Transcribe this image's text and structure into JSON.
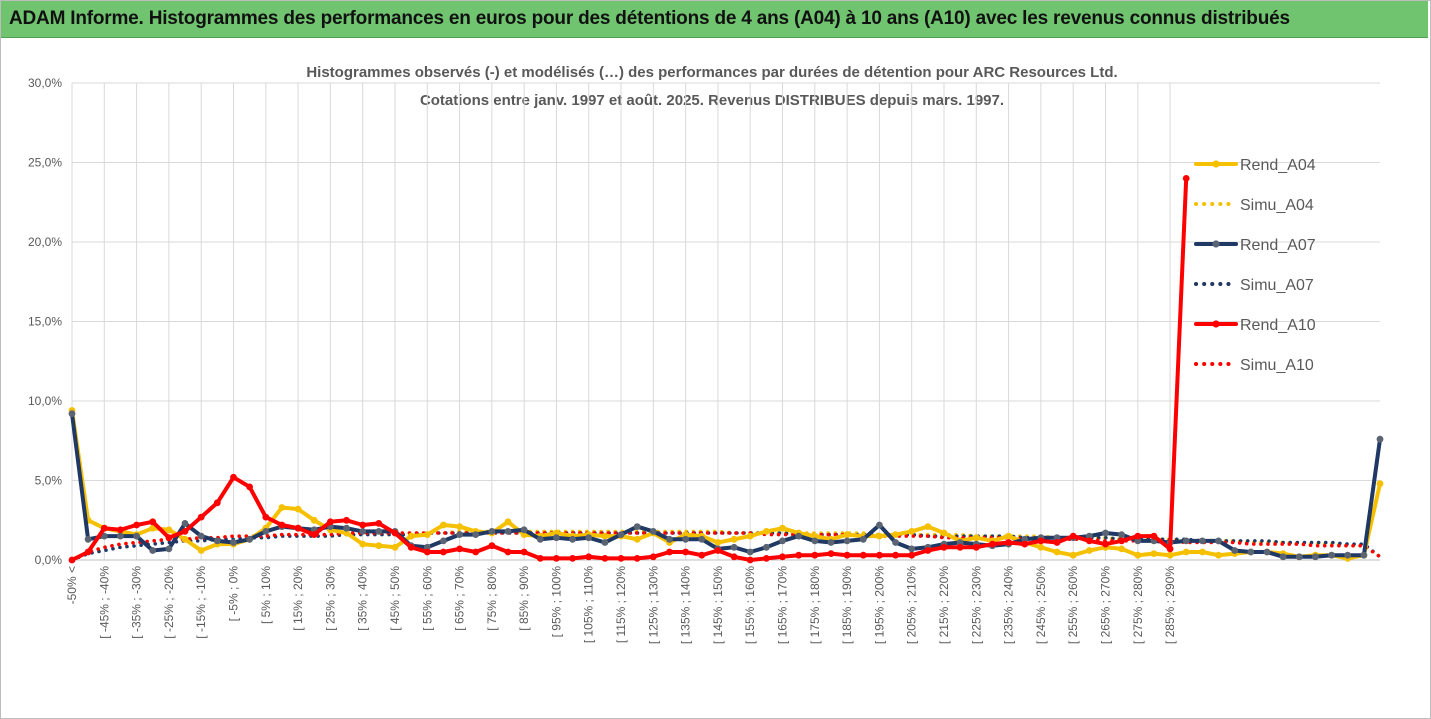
{
  "header": {
    "title": "ADAM Informe. Histogrammes des performances en euros pour des détentions de 4 ans (A04) à 10 ans (A10) avec les revenus connus distribués"
  },
  "chart_data": {
    "type": "line",
    "subtitle_line1": "Histogrammes observés (-) et modélisés (…) des performances par durées de détention pour ARC Resources Ltd.",
    "subtitle_line2": "Cotations entre janv. 1997 et août. 2025. Revenus DISTRIBUES depuis mars. 1997.",
    "ylim": [
      0,
      30
    ],
    "ytick_labels": [
      "0,0%",
      "5,0%",
      "10,0%",
      "15,0%",
      "20,0%",
      "25,0%",
      "30,0%"
    ],
    "x_labels": [
      "-50% <",
      "[ -45% ; -40%",
      "[ -35% ; -30%",
      "[ -25% ; -20%",
      "[ -15% ; -10%",
      "[ -5% ; 0%",
      "[ 5% ; 10%",
      "[ 15% ; 20%",
      "[ 25% ; 30%",
      "[ 35% ; 40%",
      "[ 45% ; 50%",
      "[ 55% ; 60%",
      "[ 65% ; 70%",
      "[ 75% ; 80%",
      "[ 85% ; 90%",
      "[ 95% ; 100%",
      "[ 105% ; 110%",
      "[ 115% ; 120%",
      "[ 125% ; 130%",
      "[ 135% ; 140%",
      "[ 145% ; 150%",
      "[ 155% ; 160%",
      "[ 165% ; 170%",
      "[ 175% ; 180%",
      "[ 185% ; 190%",
      "[ 195% ; 200%",
      "[ 205% ; 210%",
      "[ 215% ; 220%",
      "[ 225% ; 230%",
      "[ 235% ; 240%",
      "[ 245% ; 250%",
      "[ 255% ; 260%",
      "[ 265% ; 270%",
      "[ 275% ; 280%",
      "[ 285% ; 290%"
    ],
    "grid": true,
    "legend_position": "right",
    "series": [
      {
        "name": "Rend_A04",
        "style": "solid",
        "markers": true,
        "color": "#f5c000",
        "values": [
          9.4,
          2.5,
          2.0,
          1.8,
          1.6,
          2.0,
          1.9,
          1.3,
          0.6,
          1.0,
          1.0,
          1.3,
          2.0,
          3.3,
          3.2,
          2.5,
          1.9,
          1.7,
          1.0,
          0.9,
          0.8,
          1.5,
          1.6,
          2.2,
          2.1,
          1.8,
          1.7,
          2.4,
          1.6,
          1.5,
          1.7,
          1.5,
          1.6,
          1.5,
          1.5,
          1.3,
          1.7,
          1.1,
          1.6,
          1.5,
          1.1,
          1.3,
          1.5,
          1.8,
          2.0,
          1.7,
          1.5,
          1.3,
          1.6,
          1.5,
          1.5,
          1.6,
          1.8,
          2.1,
          1.7,
          1.2,
          1.4,
          1.2,
          1.5,
          1.1,
          0.8,
          0.5,
          0.3,
          0.6,
          0.8,
          0.7,
          0.3,
          0.4,
          0.3,
          0.5,
          0.5,
          0.3,
          0.4,
          0.5,
          0.5,
          0.4,
          0.2,
          0.3,
          0.3,
          0.1,
          0.3,
          4.8
        ]
      },
      {
        "name": "Simu_A04",
        "style": "dotted",
        "markers": false,
        "color": "#f5c000",
        "values": [
          0.0,
          0.5,
          0.8,
          1.0,
          1.1,
          1.2,
          1.3,
          1.3,
          1.4,
          1.4,
          1.5,
          1.5,
          1.5,
          1.6,
          1.6,
          1.6,
          1.6,
          1.7,
          1.7,
          1.7,
          1.7,
          1.7,
          1.7,
          1.7,
          1.8,
          1.8,
          1.8,
          1.8,
          1.8,
          1.8,
          1.8,
          1.8,
          1.8,
          1.8,
          1.8,
          1.8,
          1.8,
          1.8,
          1.8,
          1.8,
          1.8,
          1.7,
          1.7,
          1.7,
          1.7,
          1.7,
          1.7,
          1.7,
          1.7,
          1.7,
          1.6,
          1.6,
          1.6,
          1.6,
          1.6,
          1.6,
          1.5,
          1.5,
          1.5,
          1.5,
          1.5,
          1.4,
          1.4,
          1.4,
          1.4,
          1.3,
          1.3,
          1.3,
          1.3,
          1.2,
          1.2,
          1.2,
          1.2,
          1.1,
          1.1,
          1.1,
          1.0,
          1.0,
          1.0,
          0.9,
          0.9,
          0.2
        ]
      },
      {
        "name": "Rend_A07",
        "style": "solid",
        "markers": true,
        "color": "#1f3864",
        "values": [
          9.2,
          1.3,
          1.5,
          1.5,
          1.5,
          0.6,
          0.7,
          2.3,
          1.5,
          1.2,
          1.1,
          1.3,
          1.8,
          2.1,
          2.0,
          1.9,
          2.1,
          2.0,
          1.8,
          1.8,
          1.8,
          0.9,
          0.8,
          1.2,
          1.6,
          1.6,
          1.8,
          1.8,
          1.9,
          1.3,
          1.4,
          1.3,
          1.4,
          1.1,
          1.6,
          2.1,
          1.8,
          1.3,
          1.3,
          1.3,
          0.7,
          0.8,
          0.5,
          0.8,
          1.2,
          1.5,
          1.2,
          1.1,
          1.2,
          1.3,
          2.2,
          1.1,
          0.7,
          0.8,
          1.0,
          1.1,
          1.0,
          0.9,
          1.0,
          1.3,
          1.4,
          1.4,
          1.4,
          1.5,
          1.7,
          1.6,
          1.2,
          1.2,
          1.1,
          1.2,
          1.2,
          1.2,
          0.6,
          0.5,
          0.5,
          0.2,
          0.2,
          0.2,
          0.3,
          0.3,
          0.3,
          7.6
        ]
      },
      {
        "name": "Simu_A07",
        "style": "dotted",
        "markers": false,
        "color": "#1f3864",
        "values": [
          0.0,
          0.4,
          0.6,
          0.8,
          0.9,
          1.0,
          1.1,
          1.2,
          1.2,
          1.3,
          1.3,
          1.4,
          1.4,
          1.5,
          1.5,
          1.5,
          1.5,
          1.6,
          1.6,
          1.6,
          1.6,
          1.6,
          1.7,
          1.7,
          1.7,
          1.7,
          1.7,
          1.7,
          1.7,
          1.7,
          1.7,
          1.7,
          1.7,
          1.7,
          1.7,
          1.7,
          1.7,
          1.7,
          1.7,
          1.7,
          1.7,
          1.7,
          1.7,
          1.7,
          1.7,
          1.6,
          1.6,
          1.6,
          1.6,
          1.6,
          1.6,
          1.6,
          1.6,
          1.5,
          1.5,
          1.5,
          1.5,
          1.5,
          1.5,
          1.4,
          1.4,
          1.4,
          1.4,
          1.4,
          1.4,
          1.3,
          1.3,
          1.3,
          1.3,
          1.3,
          1.2,
          1.2,
          1.2,
          1.2,
          1.2,
          1.1,
          1.1,
          1.1,
          1.1,
          1.0,
          1.0,
          0.2
        ]
      },
      {
        "name": "Rend_A10",
        "style": "solid",
        "markers": true,
        "color": "#ff0000",
        "values": [
          0.0,
          0.5,
          2.0,
          1.9,
          2.2,
          2.4,
          1.4,
          1.8,
          2.7,
          3.6,
          5.2,
          4.6,
          2.7,
          2.2,
          2.0,
          1.6,
          2.4,
          2.5,
          2.2,
          2.3,
          1.7,
          0.8,
          0.5,
          0.5,
          0.7,
          0.5,
          0.9,
          0.5,
          0.5,
          0.1,
          0.1,
          0.1,
          0.2,
          0.1,
          0.1,
          0.1,
          0.2,
          0.5,
          0.5,
          0.3,
          0.6,
          0.2,
          0.0,
          0.1,
          0.2,
          0.3,
          0.3,
          0.4,
          0.3,
          0.3,
          0.3,
          0.3,
          0.3,
          0.6,
          0.8,
          0.8,
          0.8,
          1.0,
          1.1,
          1.0,
          1.2,
          1.1,
          1.5,
          1.2,
          1.0,
          1.2,
          1.5,
          1.5,
          0.7,
          24.0
        ]
      },
      {
        "name": "Simu_A10",
        "style": "dotted",
        "markers": false,
        "color": "#ff0000",
        "values": [
          0.0,
          0.5,
          0.8,
          1.0,
          1.1,
          1.2,
          1.3,
          1.3,
          1.4,
          1.4,
          1.5,
          1.5,
          1.5,
          1.6,
          1.6,
          1.6,
          1.6,
          1.7,
          1.7,
          1.7,
          1.7,
          1.7,
          1.7,
          1.7,
          1.7,
          1.7,
          1.7,
          1.7,
          1.7,
          1.7,
          1.7,
          1.7,
          1.7,
          1.7,
          1.7,
          1.7,
          1.7,
          1.7,
          1.7,
          1.7,
          1.7,
          1.7,
          1.7,
          1.6,
          1.6,
          1.6,
          1.6,
          1.6,
          1.6,
          1.5,
          1.5,
          1.5,
          1.5,
          1.5,
          1.4,
          1.4,
          1.4,
          1.4,
          1.4,
          1.3,
          1.3,
          1.3,
          1.3,
          1.3,
          1.2,
          1.2,
          1.2,
          1.2,
          1.2,
          1.1,
          1.1,
          1.1,
          1.1,
          1.0,
          1.0,
          1.0,
          1.0,
          0.9,
          0.9,
          0.9,
          0.9,
          0.2
        ]
      }
    ]
  }
}
